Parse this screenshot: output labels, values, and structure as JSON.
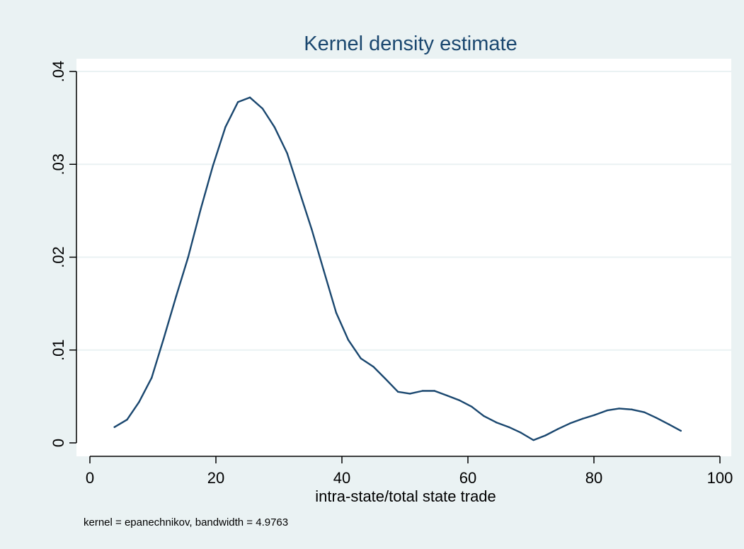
{
  "colors": {
    "background": "#eaf2f3",
    "plot_background": "#ffffff",
    "grid": "#eaf2f3",
    "line": "#1a476f",
    "title": "#1a476f",
    "axis": "#000000"
  },
  "chart_data": {
    "type": "line",
    "title": "Kernel density estimate",
    "xlabel": "intra-state/total state trade",
    "ylabel": "",
    "note": "kernel = epanechnikov, bandwidth = 4.9763",
    "xlim": [
      0,
      100
    ],
    "ylim": [
      0,
      0.04
    ],
    "xticks": [
      0,
      20,
      40,
      60,
      80,
      100
    ],
    "xtick_labels": [
      "0",
      "20",
      "40",
      "60",
      "80",
      "100"
    ],
    "yticks": [
      0,
      0.01,
      0.02,
      0.03,
      0.04
    ],
    "ytick_labels": [
      "0",
      ".01",
      ".02",
      ".03",
      ".04"
    ],
    "grid": true,
    "series": [
      {
        "x": [
          3.9,
          5.9,
          7.8,
          9.8,
          11.7,
          13.7,
          15.6,
          17.6,
          19.5,
          21.5,
          23.5,
          25.4,
          27.4,
          29.3,
          31.3,
          33.2,
          35.2,
          37.1,
          39.1,
          41.0,
          43.0,
          45.0,
          46.9,
          48.9,
          50.8,
          52.8,
          54.7,
          56.7,
          58.6,
          60.6,
          62.5,
          64.5,
          66.5,
          68.4,
          70.4,
          72.3,
          74.3,
          76.2,
          78.2,
          80.1,
          82.1,
          84.0,
          86.0,
          88.0,
          89.9,
          91.9,
          93.8
        ],
        "y": [
          0.0017,
          0.0025,
          0.0044,
          0.007,
          0.0112,
          0.0158,
          0.02,
          0.0252,
          0.0298,
          0.034,
          0.0367,
          0.0372,
          0.036,
          0.034,
          0.0312,
          0.0272,
          0.023,
          0.0186,
          0.014,
          0.0111,
          0.0091,
          0.0082,
          0.0069,
          0.0055,
          0.0053,
          0.0056,
          0.0056,
          0.0051,
          0.0046,
          0.0039,
          0.0029,
          0.0022,
          0.0017,
          0.0011,
          0.0003,
          0.0008,
          0.0015,
          0.0021,
          0.0026,
          0.003,
          0.0035,
          0.0037,
          0.0036,
          0.0033,
          0.0027,
          0.002,
          0.0013
        ]
      }
    ]
  }
}
